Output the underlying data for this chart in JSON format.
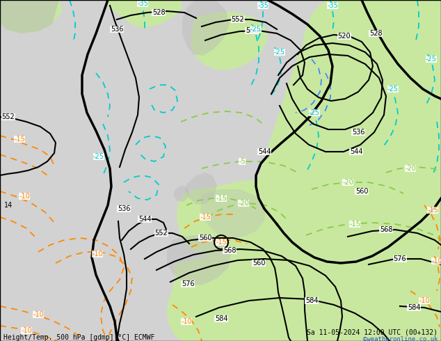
{
  "title_left": "Height/Temp. 500 hPa [gdmp][°C] ECMWF",
  "title_right": "Sa 11-05-2024 12:00 UTC (00+132)",
  "credit": "©weatheronline.co.uk",
  "bg_color": "#d2d2d2",
  "green_color": "#c8e8a0",
  "z500_color": "#000000",
  "cyan_color": "#00CCCC",
  "blue_color": "#4488FF",
  "green_temp_color": "#88CC44",
  "orange_color": "#FF8800"
}
